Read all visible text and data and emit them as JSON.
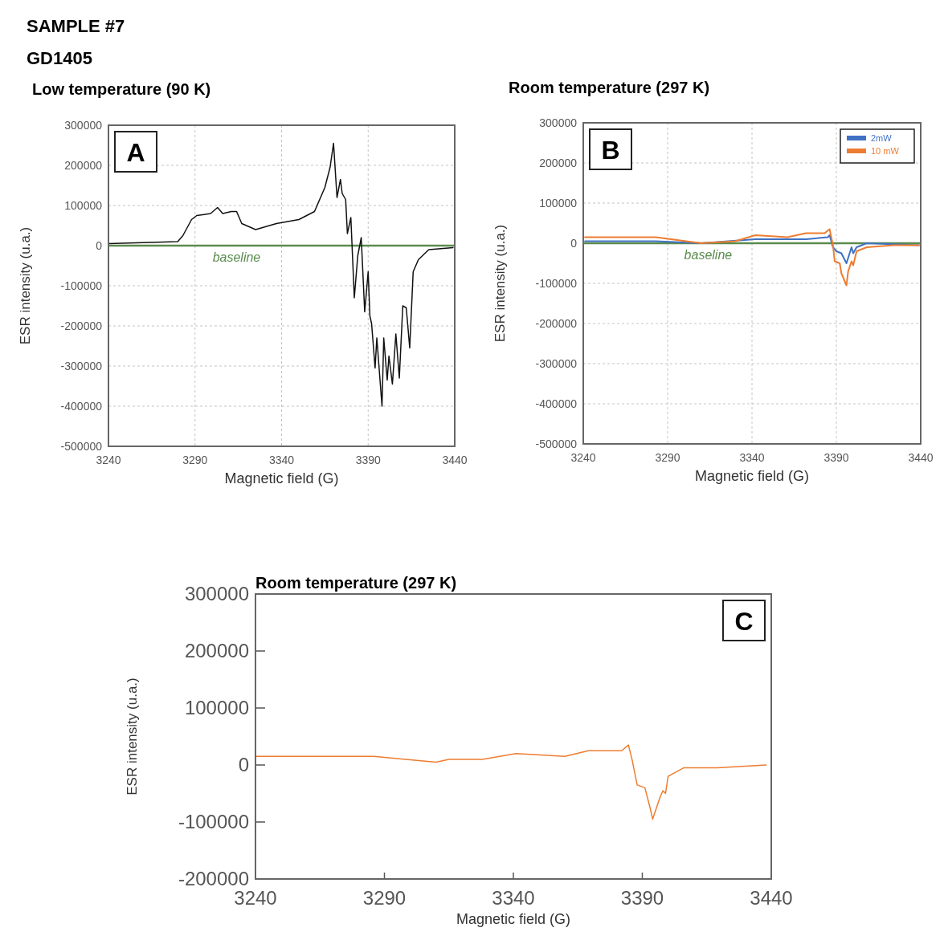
{
  "chart_data": [
    {
      "type": "line",
      "title": "Low temperature (90 K)",
      "xlabel": "Magnetic field (G)",
      "ylabel": "ESR intensity (u.a.)",
      "annotations": [
        "SAMPLE #7",
        "GD1405",
        "A"
      ],
      "xlim": [
        3240,
        3440
      ],
      "xticks": [
        3240,
        3290,
        3340,
        3390,
        3440
      ],
      "ylim": [
        -500000,
        300000
      ],
      "yticks": [
        -500000,
        -400000,
        -300000,
        -200000,
        -100000,
        0,
        100000,
        200000,
        300000
      ],
      "grid": true,
      "legend": false,
      "ref_lines": [
        {
          "axis": "y",
          "value": 0,
          "label": "baseline",
          "color": "#5b8c4e"
        }
      ],
      "series": [
        {
          "color": "#111111",
          "x": [
            3240,
            3280,
            3283,
            3288,
            3291,
            3299,
            3303,
            3306,
            3311,
            3314,
            3317,
            3325,
            3337,
            3350,
            3359,
            3365,
            3368,
            3370,
            3372,
            3374,
            3375,
            3377,
            3378,
            3380,
            3382,
            3384,
            3386,
            3388,
            3390,
            3391,
            3392,
            3394,
            3395,
            3398,
            3399,
            3401,
            3402,
            3404,
            3406,
            3408,
            3410,
            3412,
            3414,
            3416,
            3419,
            3425,
            3439
          ],
          "values": [
            5000,
            10000,
            25000,
            65000,
            75000,
            80000,
            95000,
            80000,
            85000,
            85000,
            55000,
            40000,
            55000,
            65000,
            85000,
            145000,
            195000,
            255000,
            120000,
            165000,
            130000,
            115000,
            30000,
            70000,
            -130000,
            -25000,
            20000,
            -165000,
            -65000,
            -175000,
            -195000,
            -305000,
            -230000,
            -400000,
            -230000,
            -335000,
            -275000,
            -345000,
            -220000,
            -330000,
            -150000,
            -155000,
            -255000,
            -65000,
            -35000,
            -10000,
            -5000
          ]
        }
      ]
    },
    {
      "type": "line",
      "title": "Room temperature (297 K)",
      "xlabel": "Magnetic field (G)",
      "ylabel": "ESR intensity (u.a.)",
      "annotations": [
        "B"
      ],
      "xlim": [
        3240,
        3440
      ],
      "xticks": [
        3240,
        3290,
        3340,
        3390,
        3440
      ],
      "ylim": [
        -500000,
        300000
      ],
      "yticks": [
        -500000,
        -400000,
        -300000,
        -200000,
        -100000,
        0,
        100000,
        200000,
        300000
      ],
      "grid": true,
      "legend": "top right",
      "ref_lines": [
        {
          "axis": "y",
          "value": 0,
          "label": "baseline",
          "color": "#5b8c4e"
        }
      ],
      "series": [
        {
          "name": "2mW",
          "color": "#3f72c4",
          "x": [
            3241,
            3283,
            3310,
            3342,
            3372,
            3385,
            3386,
            3388,
            3390,
            3393,
            3396,
            3399,
            3400,
            3402,
            3408,
            3439
          ],
          "values": [
            5000,
            5000,
            0,
            10000,
            10000,
            15000,
            20000,
            -10000,
            -20000,
            -25000,
            -50000,
            -10000,
            -25000,
            -10000,
            0,
            -5000
          ]
        },
        {
          "name": "10 mW",
          "color": "#ed7d31",
          "x": [
            3241,
            3283,
            3310,
            3330,
            3342,
            3361,
            3372,
            3383,
            3386,
            3388,
            3389,
            3392,
            3393,
            3396,
            3397,
            3399,
            3400,
            3402,
            3408,
            3424,
            3439
          ],
          "values": [
            15000,
            15000,
            0,
            5000,
            20000,
            15000,
            25000,
            25000,
            35000,
            -5000,
            -45000,
            -50000,
            -75000,
            -105000,
            -70000,
            -45000,
            -55000,
            -20000,
            -10000,
            -5000,
            -5000
          ]
        }
      ]
    },
    {
      "type": "line",
      "title": "Room temperature (297 K)",
      "xlabel": "Magnetic field (G)",
      "ylabel": "ESR intensity (u.a.)",
      "annotations": [
        "C"
      ],
      "xlim": [
        3240,
        3440
      ],
      "xticks": [
        3240,
        3290,
        3340,
        3390,
        3440
      ],
      "ylim": [
        -200000,
        300000
      ],
      "yticks": [
        -200000,
        -100000,
        0,
        100000,
        200000,
        300000
      ],
      "grid": false,
      "legend": false,
      "series": [
        {
          "color": "#ed7d31",
          "x": [
            3240,
            3269,
            3286,
            3310,
            3315,
            3328,
            3341,
            3360,
            3369,
            3382,
            3384.6,
            3386,
            3388,
            3391,
            3393,
            3394,
            3397,
            3398,
            3399,
            3400,
            3406,
            3419,
            3438
          ],
          "values": [
            15000,
            15000,
            15000,
            5000,
            10000,
            10000,
            20000,
            15000,
            25000,
            25000,
            35000,
            10000,
            -35000,
            -40000,
            -75000,
            -95000,
            -55000,
            -45000,
            -50000,
            -20000,
            -5000,
            -5000,
            0
          ]
        }
      ]
    }
  ]
}
